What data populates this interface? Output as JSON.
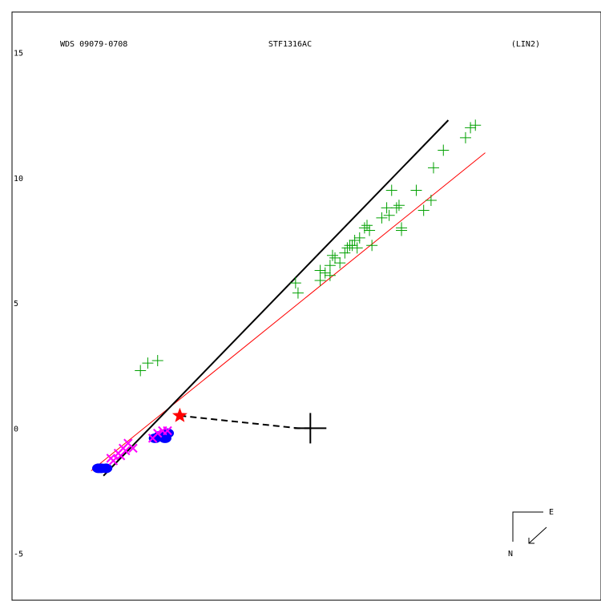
{
  "header": {
    "left": "WDS 09079-0708",
    "center": "STF1316AC",
    "right": "(LIN2)"
  },
  "compass": {
    "east": "E",
    "north": "N"
  },
  "chart_data": {
    "type": "scatter",
    "title": "STF1316AC",
    "xlabel": "",
    "ylabel": "",
    "xlim": [
      -12.6,
      11.8
    ],
    "ylim": [
      -6.9,
      17.1
    ],
    "yticks": [
      {
        "value": 15,
        "label": "15"
      },
      {
        "value": 10,
        "label": "10"
      },
      {
        "value": 5,
        "label": "5"
      },
      {
        "value": 0,
        "label": "0"
      },
      {
        "value": -5,
        "label": "-5"
      }
    ],
    "colors": {
      "fit_line": "#000000",
      "red_line": "#ff0000",
      "plus_points": "#00a000",
      "blue_points": "#0000ff",
      "magenta_points": "#ff00ff",
      "star": "#ff0000",
      "primary": "#000000"
    },
    "fit_line": [
      [
        -8.4,
        -1.9
      ],
      [
        5.6,
        12.3
      ]
    ],
    "red_line": [
      [
        -8.9,
        -1.7
      ],
      [
        7.1,
        11.0
      ]
    ],
    "star": {
      "x": -5.3,
      "y": 0.5
    },
    "primary": {
      "x": 0.0,
      "y": 0.0
    },
    "star_to_primary": [
      [
        -5.3,
        0.5
      ],
      [
        -0.5,
        0.0
      ],
      [
        0.0,
        0.0
      ]
    ],
    "series": [
      {
        "marker": "plus",
        "points": [
          [
            -6.9,
            2.3
          ],
          [
            -6.6,
            2.6
          ],
          [
            -6.2,
            2.7
          ],
          [
            -0.6,
            5.8
          ],
          [
            -0.5,
            5.4
          ],
          [
            0.4,
            5.9
          ],
          [
            0.4,
            6.3
          ],
          [
            0.6,
            6.2
          ],
          [
            0.8,
            6.5
          ],
          [
            0.8,
            6.1
          ],
          [
            0.9,
            6.9
          ],
          [
            1.2,
            6.6
          ],
          [
            1.0,
            6.8
          ],
          [
            1.4,
            7.0
          ],
          [
            1.5,
            7.2
          ],
          [
            1.6,
            7.3
          ],
          [
            1.7,
            7.3
          ],
          [
            1.8,
            7.5
          ],
          [
            1.9,
            7.2
          ],
          [
            2.0,
            7.6
          ],
          [
            2.2,
            8.0
          ],
          [
            2.3,
            8.1
          ],
          [
            2.4,
            7.9
          ],
          [
            2.5,
            7.3
          ],
          [
            2.9,
            8.4
          ],
          [
            3.1,
            8.8
          ],
          [
            3.2,
            8.5
          ],
          [
            3.3,
            9.5
          ],
          [
            3.6,
            8.9
          ],
          [
            3.7,
            8.0
          ],
          [
            3.7,
            7.9
          ],
          [
            3.5,
            8.8
          ],
          [
            4.3,
            9.5
          ],
          [
            4.6,
            8.7
          ],
          [
            4.9,
            9.1
          ],
          [
            5.0,
            10.4
          ],
          [
            5.4,
            11.1
          ],
          [
            6.3,
            11.6
          ],
          [
            6.5,
            12.0
          ],
          [
            6.7,
            12.1
          ]
        ]
      },
      {
        "marker": "filled-circle",
        "points": [
          [
            -8.6,
            -1.6
          ],
          [
            -8.5,
            -1.6
          ],
          [
            -8.3,
            -1.6
          ],
          [
            -6.3,
            -0.4
          ],
          [
            -6.1,
            -0.3
          ],
          [
            -6.0,
            -0.3
          ],
          [
            -5.9,
            -0.4
          ],
          [
            -5.8,
            -0.2
          ]
        ]
      },
      {
        "marker": "cross",
        "points": [
          [
            -8.1,
            -1.2
          ],
          [
            -7.8,
            -1.0
          ],
          [
            -7.6,
            -0.8
          ],
          [
            -7.4,
            -0.6
          ],
          [
            -7.2,
            -0.8
          ],
          [
            -8.0,
            -1.3
          ],
          [
            -7.7,
            -1.1
          ],
          [
            -7.5,
            -0.9
          ],
          [
            -6.4,
            -0.4
          ],
          [
            -6.2,
            -0.2
          ],
          [
            -6.0,
            -0.1
          ],
          [
            -5.8,
            -0.1
          ]
        ]
      }
    ]
  }
}
